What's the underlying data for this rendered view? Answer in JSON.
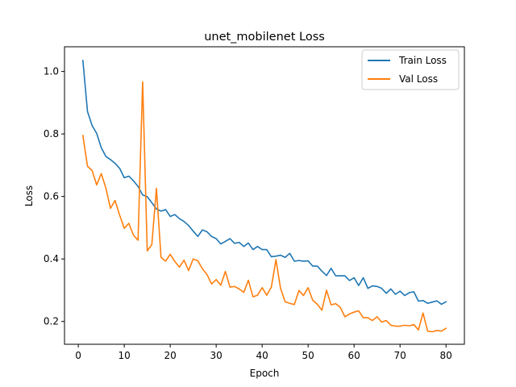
{
  "chart_data": {
    "type": "line",
    "title": "unet_mobilenet Loss",
    "xlabel": "Epoch",
    "ylabel": "Loss",
    "xlim": [
      -3,
      84
    ],
    "ylim": [
      0.127,
      1.079
    ],
    "xticks": [
      0,
      10,
      20,
      30,
      40,
      50,
      60,
      70,
      80
    ],
    "yticks": [
      0.2,
      0.4,
      0.6,
      0.8,
      1.0
    ],
    "ytick_labels": [
      "0.2",
      "0.4",
      "0.6",
      "0.8",
      "1.0"
    ],
    "grid": false,
    "legend_position": "top-right",
    "x": [
      1,
      2,
      3,
      4,
      5,
      6,
      7,
      8,
      9,
      10,
      11,
      12,
      13,
      14,
      15,
      16,
      17,
      18,
      19,
      20,
      21,
      22,
      23,
      24,
      25,
      26,
      27,
      28,
      29,
      30,
      31,
      32,
      33,
      34,
      35,
      36,
      37,
      38,
      39,
      40,
      41,
      42,
      43,
      44,
      45,
      46,
      47,
      48,
      49,
      50,
      51,
      52,
      53,
      54,
      55,
      56,
      57,
      58,
      59,
      60,
      61,
      62,
      63,
      64,
      65,
      66,
      67,
      68,
      69,
      70,
      71,
      72,
      73,
      74,
      75,
      76,
      77,
      78,
      79,
      80
    ],
    "series": [
      {
        "name": "Train Loss",
        "color": "#1f77b4",
        "values": [
          1.035,
          0.872,
          0.827,
          0.802,
          0.756,
          0.728,
          0.718,
          0.706,
          0.69,
          0.66,
          0.665,
          0.65,
          0.632,
          0.605,
          0.599,
          0.58,
          0.56,
          0.553,
          0.558,
          0.536,
          0.542,
          0.529,
          0.52,
          0.507,
          0.489,
          0.472,
          0.493,
          0.487,
          0.472,
          0.465,
          0.448,
          0.456,
          0.465,
          0.45,
          0.453,
          0.44,
          0.451,
          0.43,
          0.44,
          0.43,
          0.43,
          0.407,
          0.409,
          0.412,
          0.405,
          0.418,
          0.393,
          0.395,
          0.393,
          0.394,
          0.377,
          0.377,
          0.361,
          0.347,
          0.37,
          0.346,
          0.346,
          0.346,
          0.331,
          0.34,
          0.315,
          0.34,
          0.306,
          0.314,
          0.312,
          0.306,
          0.29,
          0.304,
          0.287,
          0.297,
          0.283,
          0.292,
          0.295,
          0.265,
          0.267,
          0.258,
          0.262,
          0.266,
          0.255,
          0.263
        ]
      },
      {
        "name": "Val Loss",
        "color": "#ff7f0e",
        "values": [
          0.795,
          0.697,
          0.683,
          0.637,
          0.673,
          0.627,
          0.562,
          0.587,
          0.54,
          0.498,
          0.514,
          0.476,
          0.46,
          0.967,
          0.426,
          0.446,
          0.626,
          0.405,
          0.393,
          0.415,
          0.392,
          0.374,
          0.396,
          0.363,
          0.4,
          0.394,
          0.369,
          0.35,
          0.32,
          0.334,
          0.316,
          0.36,
          0.31,
          0.312,
          0.304,
          0.293,
          0.332,
          0.279,
          0.284,
          0.308,
          0.284,
          0.31,
          0.398,
          0.306,
          0.263,
          0.258,
          0.254,
          0.299,
          0.283,
          0.308,
          0.268,
          0.255,
          0.236,
          0.3,
          0.253,
          0.257,
          0.245,
          0.215,
          0.224,
          0.23,
          0.234,
          0.212,
          0.212,
          0.203,
          0.215,
          0.198,
          0.203,
          0.188,
          0.185,
          0.185,
          0.188,
          0.186,
          0.19,
          0.173,
          0.227,
          0.169,
          0.167,
          0.171,
          0.169,
          0.178
        ]
      }
    ]
  }
}
